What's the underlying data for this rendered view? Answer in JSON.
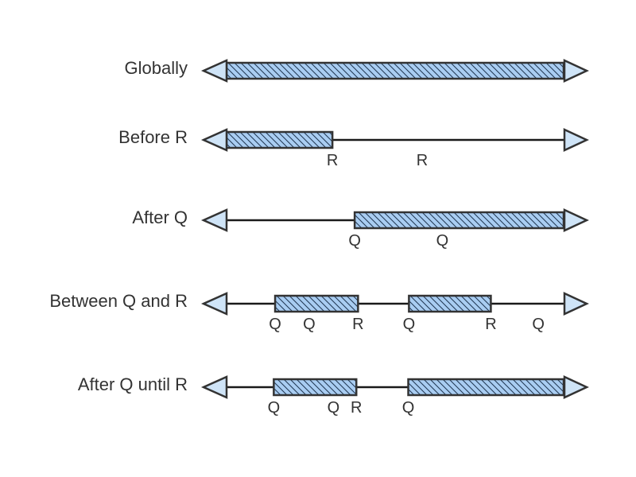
{
  "colors": {
    "segment_fill": "#a9cdf2",
    "hatch_stroke": "#1f3550",
    "arrow_fill": "#cfe4f7",
    "outline": "#333333"
  },
  "rows": [
    {
      "label": "Globally",
      "segments": [
        [
          0,
          1
        ]
      ],
      "events": []
    },
    {
      "label": "Before R",
      "segments": [
        [
          0,
          0.314
        ]
      ],
      "events": [
        {
          "text": "R",
          "pos": 0.314
        },
        {
          "text": "R",
          "pos": 0.58
        }
      ]
    },
    {
      "label": "After Q",
      "segments": [
        [
          0.38,
          1
        ]
      ],
      "events": [
        {
          "text": "Q",
          "pos": 0.38
        },
        {
          "text": "Q",
          "pos": 0.64
        }
      ]
    },
    {
      "label": "Between Q and R",
      "segments": [
        [
          0.144,
          0.39
        ],
        [
          0.541,
          0.784
        ]
      ],
      "events": [
        {
          "text": "Q",
          "pos": 0.144
        },
        {
          "text": "Q",
          "pos": 0.245
        },
        {
          "text": "R",
          "pos": 0.39
        },
        {
          "text": "Q",
          "pos": 0.541
        },
        {
          "text": "R",
          "pos": 0.784
        },
        {
          "text": "Q",
          "pos": 0.925
        }
      ]
    },
    {
      "label": "After Q until R",
      "segments": [
        [
          0.14,
          0.385
        ],
        [
          0.539,
          1
        ]
      ],
      "events": [
        {
          "text": "Q",
          "pos": 0.14
        },
        {
          "text": "Q",
          "pos": 0.317
        },
        {
          "text": "R",
          "pos": 0.385
        },
        {
          "text": "Q",
          "pos": 0.539
        }
      ]
    }
  ]
}
